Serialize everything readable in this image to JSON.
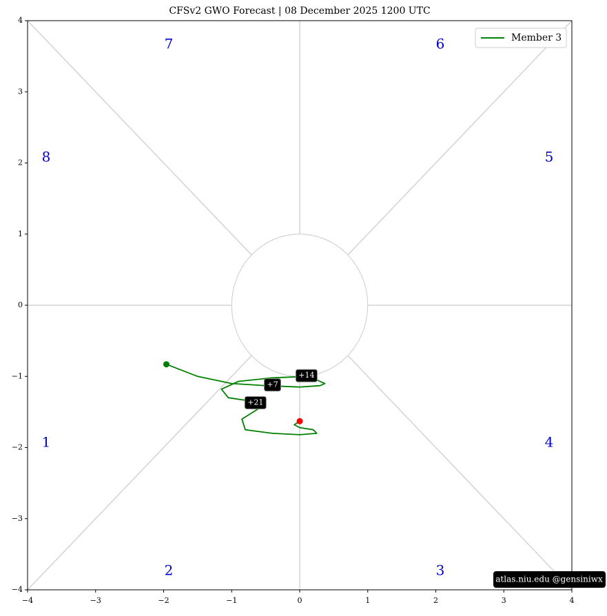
{
  "chart_data": {
    "type": "phase",
    "title": "CFSv2 GWO Forecast   |   08  December  2025 1200 UTC",
    "xlim": [
      -4,
      4
    ],
    "ylim": [
      -4,
      4
    ],
    "xticks": [
      {
        "value": -4,
        "label": "−4"
      },
      {
        "value": -3,
        "label": "−3"
      },
      {
        "value": -2,
        "label": "−2"
      },
      {
        "value": -1,
        "label": "−1"
      },
      0,
      1,
      2,
      3,
      4
    ],
    "yticks": [
      {
        "value": -4,
        "label": "−4"
      },
      {
        "value": -3,
        "label": "−3"
      },
      {
        "value": -2,
        "label": "−2"
      },
      {
        "value": -1,
        "label": "−1"
      },
      0,
      1,
      2,
      3,
      4
    ],
    "phase_labels": [
      "1",
      "2",
      "3",
      "4",
      "5",
      "6",
      "7",
      "8"
    ],
    "series": [
      {
        "name": "Member 3",
        "color": "#008000",
        "x": [
          -1.96,
          -1.5,
          -1.0,
          -0.5,
          0.0,
          0.3,
          0.37,
          0.25,
          0.1,
          -0.4,
          -0.9,
          -1.15,
          -1.05,
          -0.7,
          -0.6,
          -0.85,
          -0.8,
          -0.4,
          0.0,
          0.25,
          0.2,
          0.0,
          -0.08,
          0.0
        ],
        "values": [
          -0.83,
          -1.0,
          -1.1,
          -1.13,
          -1.15,
          -1.13,
          -1.1,
          -1.05,
          -1.0,
          -1.02,
          -1.07,
          -1.18,
          -1.3,
          -1.35,
          -1.45,
          -1.6,
          -1.75,
          -1.8,
          -1.82,
          -1.8,
          -1.75,
          -1.72,
          -1.68,
          -1.63
        ]
      }
    ],
    "start_color": "#008000",
    "end_color": "#ff0000",
    "annotations": [
      {
        "label": "+7",
        "x": -0.4,
        "y": -1.12
      },
      {
        "label": "+14",
        "x": 0.1,
        "y": -0.99
      },
      {
        "label": "+21",
        "x": -0.65,
        "y": -1.37
      }
    ],
    "legend": "upper right",
    "watermark": "atlas.niu.edu  @gensiniwx"
  }
}
